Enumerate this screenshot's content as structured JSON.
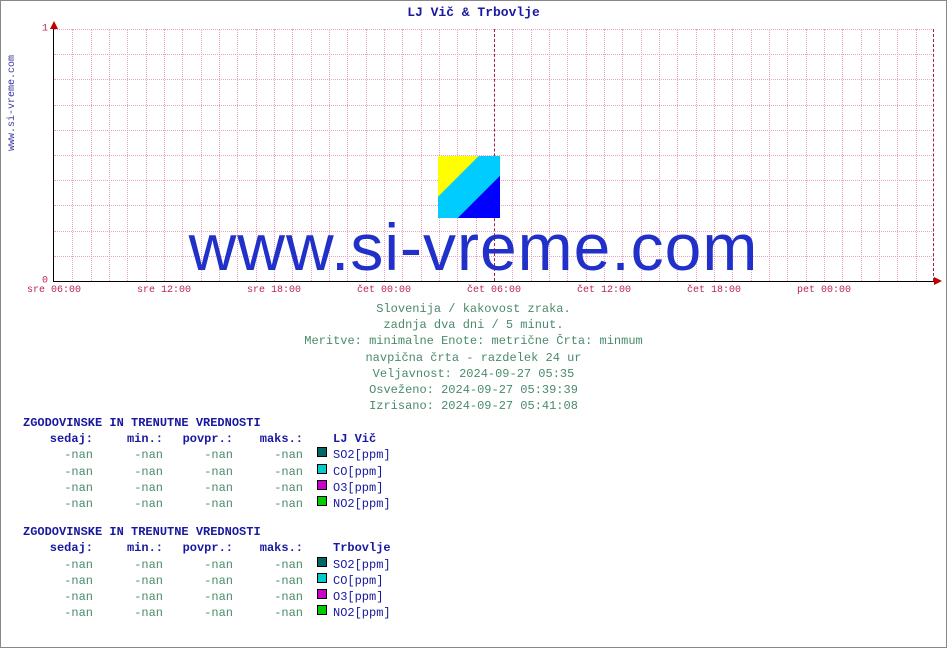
{
  "title": "LJ Vič & Trbovlje",
  "y_axis_label": "www.si-vreme.com",
  "watermark": "www.si-vreme.com",
  "chart": {
    "type": "line",
    "background_color": "#ffffff",
    "grid_color_minor": "#f0a0c0",
    "grid_color_major": "#a02040",
    "axis_color": "#000000",
    "arrow_color": "#c00000",
    "tick_label_color": "#c02060",
    "title_color": "#1818a0",
    "font_family": "Courier New",
    "title_fontsize": 13,
    "tick_fontsize": 10,
    "xlim_hours": [
      0,
      48
    ],
    "ylim": [
      0,
      1
    ],
    "y_ticks": [
      0,
      1
    ],
    "x_ticks_hours": [
      0,
      6,
      12,
      18,
      24,
      30,
      36,
      42,
      48
    ],
    "x_tick_labels": [
      "sre 06:00",
      "sre 12:00",
      "sre 18:00",
      "čet 00:00",
      "čet 06:00",
      "čet 12:00",
      "čet 18:00",
      "pet 00:00",
      ""
    ],
    "x_minor_step_hours": 1,
    "y_minor_count": 10,
    "vertical_major_at_hours": [
      24,
      48
    ],
    "series": []
  },
  "meta": {
    "line1": "Slovenija / kakovost zraka.",
    "line2": "zadnja dva dni / 5 minut.",
    "line3": "Meritve: minimalne  Enote: metrične  Črta: minmum",
    "line4": "navpična črta - razdelek 24 ur",
    "line5": "Veljavnost: 2024-09-27 05:35",
    "line6": "Osveženo: 2024-09-27 05:39:39",
    "line7": "Izrisano: 2024-09-27 05:41:08",
    "color": "#4a8a6a",
    "fontsize": 12
  },
  "tables": {
    "section_title": "ZGODOVINSKE IN TRENUTNE VREDNOSTI",
    "columns": [
      "sedaj:",
      "min.:",
      "povpr.:",
      "maks.:"
    ],
    "head_color": "#1818a0",
    "value_color": "#4a8a6a",
    "groups": [
      {
        "name": "LJ Vič",
        "rows": [
          {
            "sedaj": "-nan",
            "min": "-nan",
            "povpr": "-nan",
            "maks": "-nan",
            "swatch": "#006666",
            "param": "SO2[ppm]"
          },
          {
            "sedaj": "-nan",
            "min": "-nan",
            "povpr": "-nan",
            "maks": "-nan",
            "swatch": "#00cccc",
            "param": "CO[ppm]"
          },
          {
            "sedaj": "-nan",
            "min": "-nan",
            "povpr": "-nan",
            "maks": "-nan",
            "swatch": "#cc00cc",
            "param": "O3[ppm]"
          },
          {
            "sedaj": "-nan",
            "min": "-nan",
            "povpr": "-nan",
            "maks": "-nan",
            "swatch": "#00cc00",
            "param": "NO2[ppm]"
          }
        ]
      },
      {
        "name": "Trbovlje",
        "rows": [
          {
            "sedaj": "-nan",
            "min": "-nan",
            "povpr": "-nan",
            "maks": "-nan",
            "swatch": "#006666",
            "param": "SO2[ppm]"
          },
          {
            "sedaj": "-nan",
            "min": "-nan",
            "povpr": "-nan",
            "maks": "-nan",
            "swatch": "#00cccc",
            "param": "CO[ppm]"
          },
          {
            "sedaj": "-nan",
            "min": "-nan",
            "povpr": "-nan",
            "maks": "-nan",
            "swatch": "#cc00cc",
            "param": "O3[ppm]"
          },
          {
            "sedaj": "-nan",
            "min": "-nan",
            "povpr": "-nan",
            "maks": "-nan",
            "swatch": "#00cc00",
            "param": "NO2[ppm]"
          }
        ]
      }
    ]
  }
}
